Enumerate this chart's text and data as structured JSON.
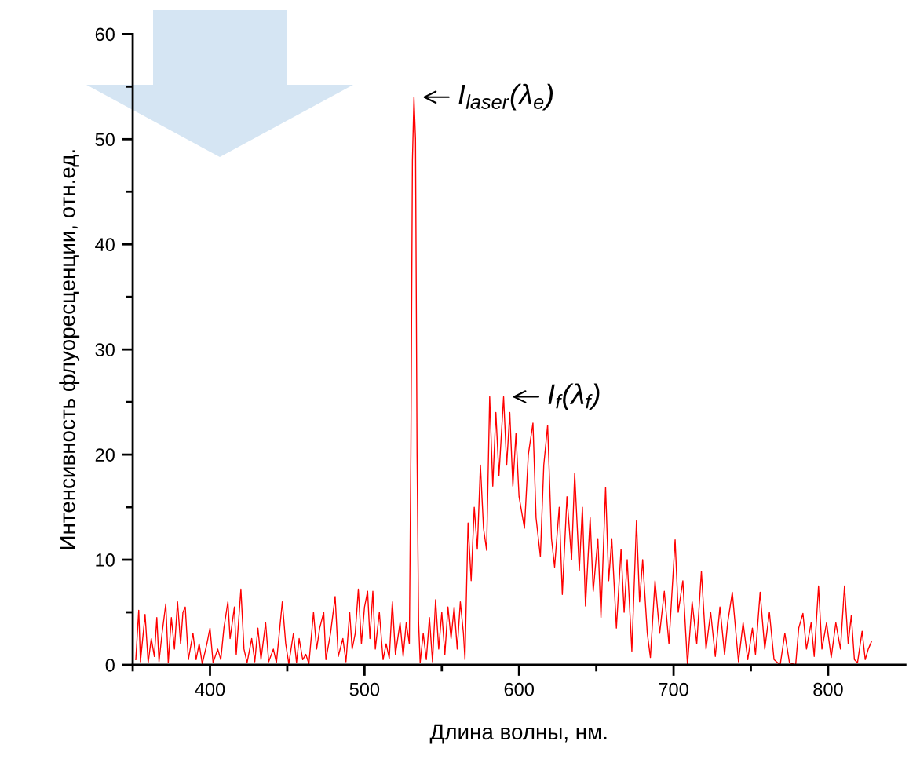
{
  "chart_data": {
    "type": "line",
    "xlabel": "Длина волны, нм.",
    "ylabel": "Интенсивность флуоресценции, отн.ед.",
    "xlim": [
      350,
      850
    ],
    "ylim": [
      0,
      60
    ],
    "xticks": [
      {
        "value": 350,
        "label": null
      },
      400,
      {
        "value": 450,
        "label": null
      },
      500,
      {
        "value": 550,
        "label": null
      },
      600,
      {
        "value": 650,
        "label": null
      },
      700,
      {
        "value": 750,
        "label": null
      },
      800
    ],
    "yticks": [
      0,
      {
        "value": 5,
        "label": null
      },
      10,
      {
        "value": 15,
        "label": null
      },
      20,
      {
        "value": 25,
        "label": null
      },
      30,
      {
        "value": 35,
        "label": null
      },
      40,
      {
        "value": 45,
        "label": null
      },
      50,
      {
        "value": 55,
        "label": null
      },
      60
    ],
    "grid": false,
    "marker": "none",
    "line_style": "solid",
    "series": [
      {
        "color": "#ff0000",
        "x": [
          352,
          353.9,
          355,
          358,
          360,
          362,
          364,
          365.6,
          367,
          369,
          371.4,
          373,
          375,
          377,
          379,
          381,
          382.5,
          384,
          386,
          389,
          391,
          393,
          395,
          398,
          400,
          402,
          405,
          407,
          409,
          411.6,
          413,
          415.8,
          417,
          420,
          422,
          424,
          427,
          429,
          431,
          433,
          436,
          438,
          441,
          443,
          446.8,
          449,
          451,
          454,
          456,
          457.7,
          460,
          462,
          464,
          467,
          469,
          471,
          473.6,
          475,
          478,
          481,
          483,
          486,
          488,
          490.4,
          492,
          494,
          496,
          498,
          500,
          502,
          503.5,
          505.4,
          507,
          509.6,
          512,
          514,
          516,
          518,
          520,
          523,
          525,
          527,
          529,
          530,
          531,
          532,
          533,
          534,
          535,
          536,
          538,
          540,
          542,
          544,
          546,
          548,
          550,
          552,
          554,
          556,
          558,
          560,
          562,
          564,
          565,
          567,
          569,
          571,
          573,
          575,
          577,
          579,
          581,
          583,
          585,
          587,
          590,
          592,
          594,
          596,
          598,
          600,
          603.5,
          606,
          609,
          611,
          613.8,
          616,
          618.5,
          621,
          623,
          626,
          628,
          631,
          634,
          636,
          639,
          641,
          643,
          646,
          648,
          651,
          653,
          656,
          658,
          660,
          663,
          666,
          668,
          670,
          673,
          676,
          678,
          680,
          683,
          685,
          688,
          691,
          694,
          697,
          701,
          703,
          706,
          709,
          712,
          715,
          718,
          721,
          724,
          727,
          730,
          733,
          735,
          738,
          742,
          745,
          748,
          751,
          753,
          756,
          759,
          762,
          765,
          769,
          772,
          775,
          779,
          781,
          783.7,
          786,
          789,
          791,
          793.8,
          796,
          799,
          802,
          805,
          808,
          810.6,
          813,
          815,
          817,
          819,
          822,
          824,
          826,
          828
        ],
        "values": [
          0.5,
          5.2,
          0.3,
          4.8,
          0.2,
          2.5,
          0.8,
          4.5,
          0.3,
          3.0,
          5.8,
          0.2,
          4.5,
          1.5,
          6.0,
          2.0,
          5.0,
          5.5,
          0.5,
          3.0,
          0.5,
          2.0,
          0.1,
          2.0,
          3.5,
          0.2,
          1.5,
          0.5,
          3.5,
          6.0,
          2.5,
          5.5,
          1.0,
          7.2,
          1.5,
          0.2,
          2.5,
          0.3,
          3.5,
          0.5,
          4.0,
          0.3,
          1.5,
          0.2,
          6.0,
          2.0,
          0.1,
          3.0,
          0.2,
          2.5,
          0.5,
          1.0,
          0.1,
          5.0,
          1.5,
          3.5,
          5.0,
          0.5,
          3.0,
          6.5,
          0.8,
          2.5,
          0.3,
          5.0,
          1.5,
          3.0,
          7.2,
          2.0,
          5.5,
          7.0,
          2.5,
          7.0,
          1.5,
          5.0,
          0.5,
          2.0,
          0.6,
          6.0,
          1.0,
          4.0,
          0.8,
          4.0,
          2.0,
          20,
          48,
          54,
          50,
          20,
          4,
          0.2,
          3,
          0.5,
          4.5,
          0.3,
          6.2,
          1.5,
          5.0,
          1.0,
          5.5,
          2.5,
          5.5,
          1.5,
          6.0,
          3.0,
          0.5,
          13.5,
          8,
          15,
          11,
          19,
          13,
          10.9,
          25.5,
          17,
          24,
          18,
          25.5,
          19,
          24,
          17,
          22,
          16,
          13,
          20,
          23,
          14,
          10.3,
          19,
          22.8,
          12,
          9.3,
          15,
          6.7,
          16,
          10,
          18.2,
          9,
          15,
          5.6,
          14,
          7,
          12,
          4.5,
          16.9,
          8,
          12,
          3.5,
          11,
          5,
          10,
          1.3,
          13.7,
          6,
          10,
          3,
          0.7,
          8,
          3,
          7,
          2,
          11.9,
          5,
          8,
          0,
          6,
          2,
          8.9,
          1.5,
          5,
          0.8,
          5.5,
          1.0,
          4,
          6.9,
          0.3,
          4,
          0.5,
          3.5,
          1.0,
          6.9,
          1.5,
          5,
          0.5,
          0,
          3,
          0.2,
          0,
          3.5,
          4.9,
          1.5,
          4,
          0.8,
          7.5,
          1.5,
          4,
          0.7,
          4,
          1.5,
          7.5,
          2,
          4.7,
          0.5,
          0.2,
          3.2,
          0.5,
          1.5,
          2.2
        ]
      }
    ],
    "annotations": [
      {
        "text": "I$_{laser}$(λ$_{e}$)",
        "x": 532,
        "y": 54
      },
      {
        "text": "I$_{f}$(λ$_{f}$)",
        "x": 590,
        "y": 25.5
      }
    ]
  }
}
